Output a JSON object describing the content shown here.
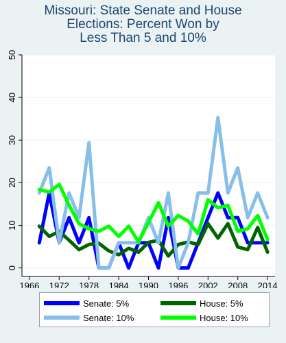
{
  "title": [
    "Missouri: State Senate and House",
    "Elections: Percent Won by",
    "Less Than 5 and 10%"
  ],
  "chart_data": {
    "type": "line",
    "title": "Missouri: State Senate and House Elections: Percent Won by Less Than 5 and 10%",
    "xlabel": "",
    "ylabel": "",
    "xlim": [
      1964.5,
      2015.5
    ],
    "ylim": [
      -2,
      50
    ],
    "x_ticks": [
      1966,
      1972,
      1978,
      1984,
      1990,
      1996,
      2002,
      2008,
      2014
    ],
    "y_ticks": [
      0,
      10,
      20,
      30,
      40,
      50
    ],
    "x": [
      1968,
      1970,
      1972,
      1974,
      1976,
      1978,
      1980,
      1982,
      1984,
      1986,
      1988,
      1990,
      1992,
      1994,
      1996,
      1998,
      2000,
      2002,
      2004,
      2006,
      2008,
      2010,
      2012,
      2014
    ],
    "series": [
      {
        "name": "Senate: 5%",
        "color": "#0000ff",
        "width": 5,
        "values": [
          5.9,
          17.6,
          5.9,
          11.8,
          5.9,
          11.8,
          0,
          0,
          5.9,
          0,
          5.9,
          5.9,
          0,
          11.8,
          0,
          0,
          5.9,
          11.8,
          17.6,
          11.8,
          11.8,
          5.9,
          5.9,
          5.9
        ]
      },
      {
        "name": "House: 5%",
        "color": "#006400",
        "width": 5,
        "values": [
          9.8,
          7.4,
          8.6,
          6.5,
          4.3,
          5.5,
          5.8,
          4.0,
          3.1,
          4.6,
          3.7,
          6.0,
          6.5,
          2.8,
          5.5,
          6.1,
          5.5,
          10.4,
          7.0,
          10.4,
          4.9,
          4.3,
          9.5,
          3.7
        ]
      },
      {
        "name": "Senate: 10%",
        "color": "#87bfe8",
        "width": 5,
        "values": [
          17.6,
          23.5,
          5.9,
          17.6,
          11.8,
          29.4,
          0,
          0,
          5.9,
          5.9,
          5.9,
          11.8,
          5.9,
          17.6,
          0,
          5.9,
          17.6,
          17.6,
          35.3,
          17.6,
          23.5,
          11.8,
          17.6,
          11.8
        ]
      },
      {
        "name": "House: 10%",
        "color": "#00ff00",
        "width": 5,
        "values": [
          18.4,
          17.8,
          19.6,
          14.7,
          10.4,
          9.2,
          8.6,
          9.8,
          7.4,
          9.8,
          6.1,
          10.7,
          15.3,
          9.8,
          12.3,
          11.0,
          8.0,
          16.0,
          14.1,
          14.7,
          8.6,
          9.2,
          12.3,
          6.7
        ]
      }
    ],
    "grid": "horizontal",
    "legend_position": "bottom"
  },
  "legend": [
    {
      "label": "Senate: 5%",
      "color": "#0000ff"
    },
    {
      "label": "House: 5%",
      "color": "#006400"
    },
    {
      "label": "Senate: 10%",
      "color": "#87bfe8"
    },
    {
      "label": "House: 10%",
      "color": "#00ff00"
    }
  ]
}
